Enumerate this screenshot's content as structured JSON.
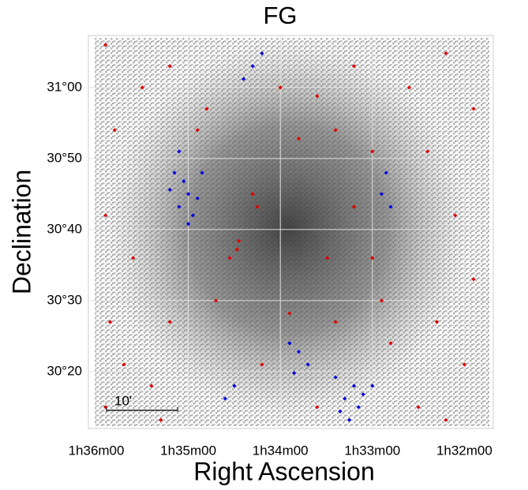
{
  "chart_data": {
    "type": "scatter",
    "title": "FG",
    "x_label": "Right Ascension",
    "y_label": "Declination",
    "xlim": [
      96.086,
      91.686
    ],
    "ylim": [
      30.2,
      31.122
    ],
    "xticks": [
      {
        "value": 96,
        "label": "1h36m00"
      },
      {
        "value": 95,
        "label": "1h35m00"
      },
      {
        "value": 94,
        "label": "1h34m00"
      },
      {
        "value": 93,
        "label": "1h33m00"
      },
      {
        "value": 92,
        "label": "1h32m00"
      }
    ],
    "yticks": [
      {
        "value": 31,
        "label": "31°00"
      },
      {
        "value": 30.8333,
        "label": "30°50"
      },
      {
        "value": 30.6667,
        "label": "30°40"
      },
      {
        "value": 30.5,
        "label": "30°30"
      },
      {
        "value": 30.3333,
        "label": "30°20"
      }
    ],
    "grid": true,
    "scale_bar": {
      "label": "10'",
      "length": 0.1667
    },
    "series": [
      {
        "color": "#e00000",
        "x": [
          95.9,
          95.5,
          95.2,
          94.8,
          94.0,
          93.6,
          93.2,
          92.6,
          92.2,
          91.9,
          92.4,
          92.1,
          91.9,
          92.3,
          92.0,
          92.5,
          92.2,
          95.8,
          95.9,
          95.6,
          95.85,
          95.7,
          95.9,
          95.4,
          95.2,
          94.47,
          94.45,
          94.55,
          94.3,
          94.25,
          93.49,
          93.2,
          93.0,
          92.9,
          93.4,
          93.9,
          94.7,
          94.9,
          93.8,
          93.4,
          93.0,
          94.2,
          93.6,
          92.8,
          95.3
        ],
        "y": [
          31.1,
          31.0,
          31.05,
          30.95,
          31.0,
          30.98,
          31.05,
          31.0,
          31.08,
          30.95,
          30.85,
          30.7,
          30.55,
          30.45,
          30.35,
          30.25,
          30.22,
          30.9,
          30.7,
          30.6,
          30.45,
          30.35,
          30.25,
          30.3,
          30.45,
          30.62,
          30.64,
          30.6,
          30.75,
          30.72,
          30.6,
          30.72,
          30.6,
          30.5,
          30.45,
          30.47,
          30.5,
          30.9,
          30.88,
          30.9,
          30.85,
          30.35,
          30.25,
          30.4,
          30.22
        ]
      },
      {
        "color": "#0000e0",
        "x": [
          95.1,
          95.0,
          94.95,
          95.05,
          95.15,
          94.9,
          95.0,
          95.2,
          94.85,
          95.1,
          93.2,
          93.3,
          93.15,
          93.4,
          93.25,
          93.1,
          93.35,
          93.0,
          93.8,
          93.9,
          93.7,
          93.85,
          94.3,
          94.2,
          94.4,
          92.9,
          92.8,
          92.85,
          94.6,
          94.5
        ],
        "y": [
          30.72,
          30.75,
          30.7,
          30.78,
          30.8,
          30.74,
          30.68,
          30.76,
          30.8,
          30.85,
          30.3,
          30.27,
          30.25,
          30.32,
          30.22,
          30.28,
          30.24,
          30.3,
          30.38,
          30.4,
          30.35,
          30.33,
          31.05,
          31.08,
          31.02,
          30.75,
          30.72,
          30.8,
          30.27,
          30.3
        ]
      }
    ]
  }
}
